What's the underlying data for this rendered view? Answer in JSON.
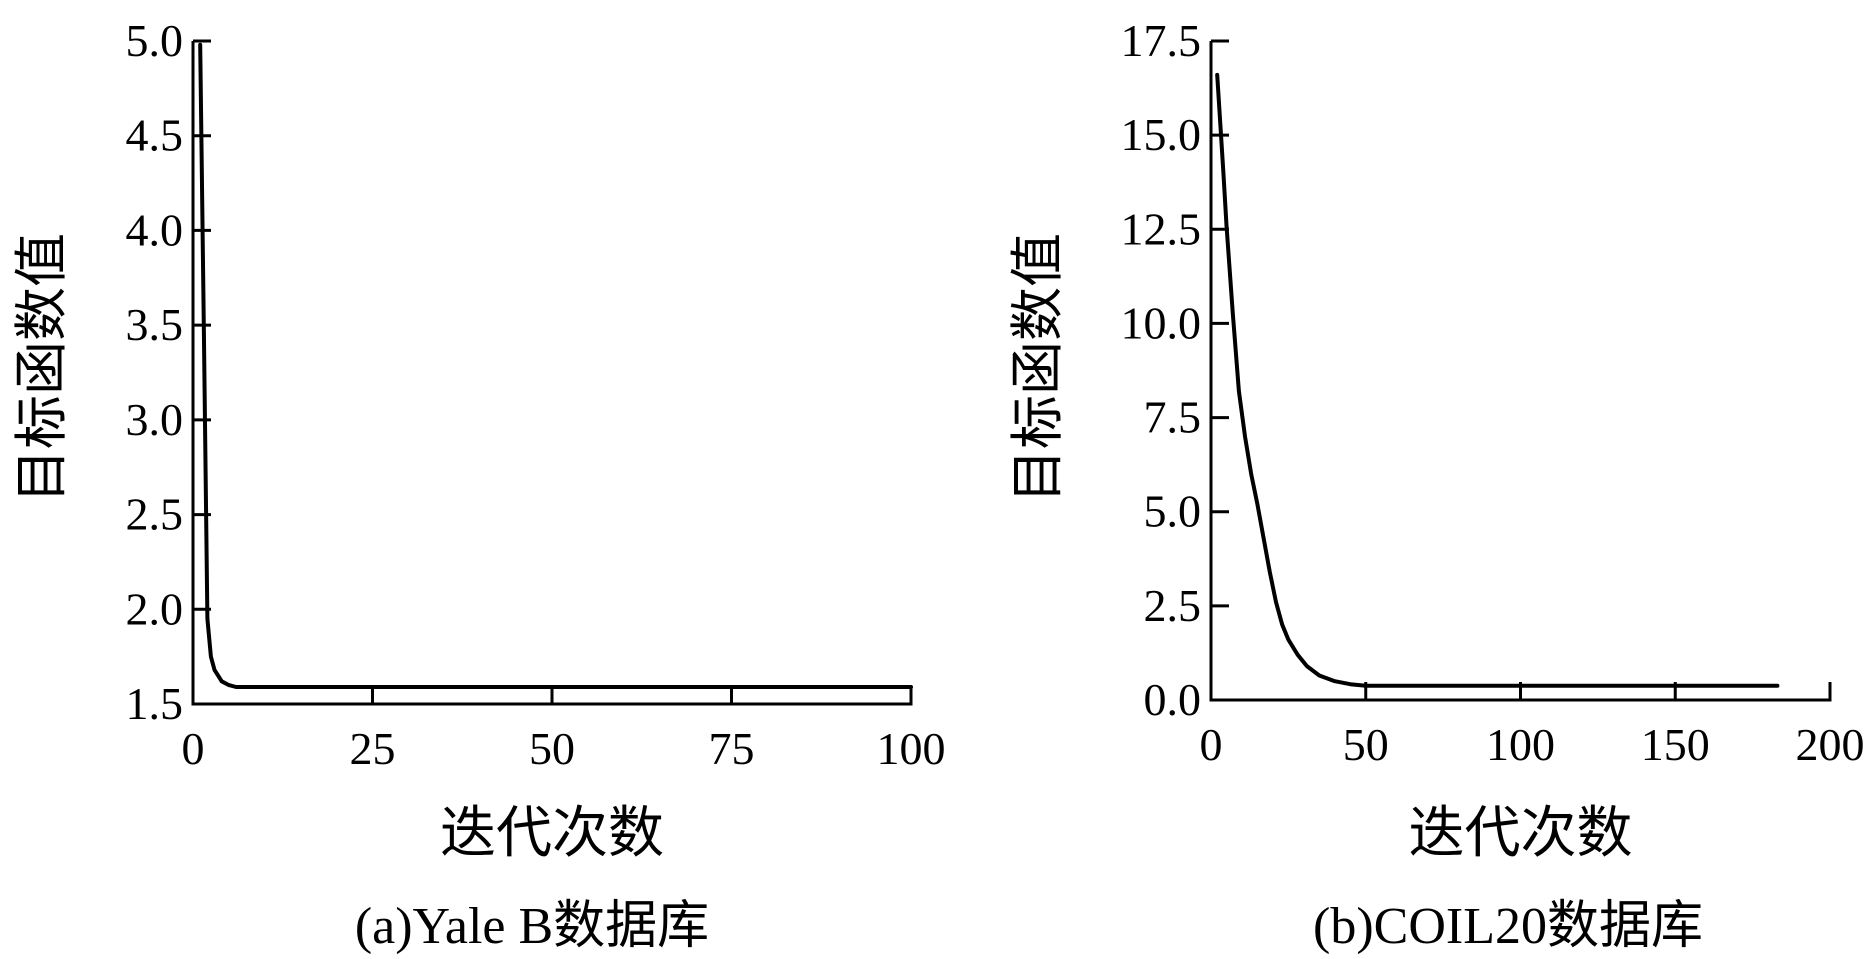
{
  "chart_data": [
    {
      "type": "line",
      "caption": "(a)Yale B数据库",
      "xlabel": "迭代次数",
      "ylabel": "目标函数值",
      "xlim": [
        0,
        100
      ],
      "ylim": [
        1.5,
        5.0
      ],
      "xticks": [
        0,
        25,
        50,
        75,
        100
      ],
      "xtick_labels": [
        "0",
        "25",
        "50",
        "75",
        "100"
      ],
      "yticks": [
        1.5,
        2.0,
        2.5,
        3.0,
        3.5,
        4.0,
        4.5,
        5.0
      ],
      "ytick_labels": [
        "1.5",
        "2.0",
        "2.5",
        "3.0",
        "3.5",
        "4.0",
        "4.5",
        "5.0"
      ],
      "grid": false,
      "series": [
        {
          "x": [
            1,
            1.5,
            2,
            2.5,
            3,
            3.5,
            4,
            5,
            6,
            8,
            10,
            20,
            40,
            60,
            80,
            100
          ],
          "y": [
            4.98,
            3.5,
            1.95,
            1.75,
            1.68,
            1.65,
            1.62,
            1.6,
            1.59,
            1.59,
            1.59,
            1.59,
            1.59,
            1.59,
            1.59,
            1.59
          ]
        }
      ]
    },
    {
      "type": "line",
      "caption": "(b)COIL20数据库",
      "xlabel": "迭代次数",
      "ylabel": "目标函数值",
      "xlim": [
        0,
        200
      ],
      "ylim": [
        0.0,
        17.5
      ],
      "xticks": [
        0,
        50,
        100,
        150,
        200
      ],
      "xtick_labels": [
        "0",
        "50",
        "100",
        "150",
        "200"
      ],
      "yticks": [
        0.0,
        2.5,
        5.0,
        7.5,
        10.0,
        12.5,
        15.0,
        17.5
      ],
      "ytick_labels": [
        "0.0",
        "2.5",
        "5.0",
        "7.5",
        "10.0",
        "12.5",
        "15.0",
        "17.5"
      ],
      "grid": false,
      "series": [
        {
          "x": [
            2,
            3,
            4,
            5,
            7,
            9,
            11,
            13,
            15,
            17,
            19,
            21,
            23,
            25,
            28,
            31,
            35,
            40,
            45,
            50,
            55,
            60,
            80,
            100,
            120,
            150,
            183
          ],
          "y": [
            16.6,
            15.3,
            14.0,
            12.6,
            10.3,
            8.2,
            7.0,
            6.0,
            5.2,
            4.3,
            3.4,
            2.6,
            2.0,
            1.6,
            1.2,
            0.9,
            0.65,
            0.5,
            0.42,
            0.38,
            0.38,
            0.38,
            0.38,
            0.38,
            0.38,
            0.38,
            0.38
          ]
        }
      ]
    }
  ]
}
